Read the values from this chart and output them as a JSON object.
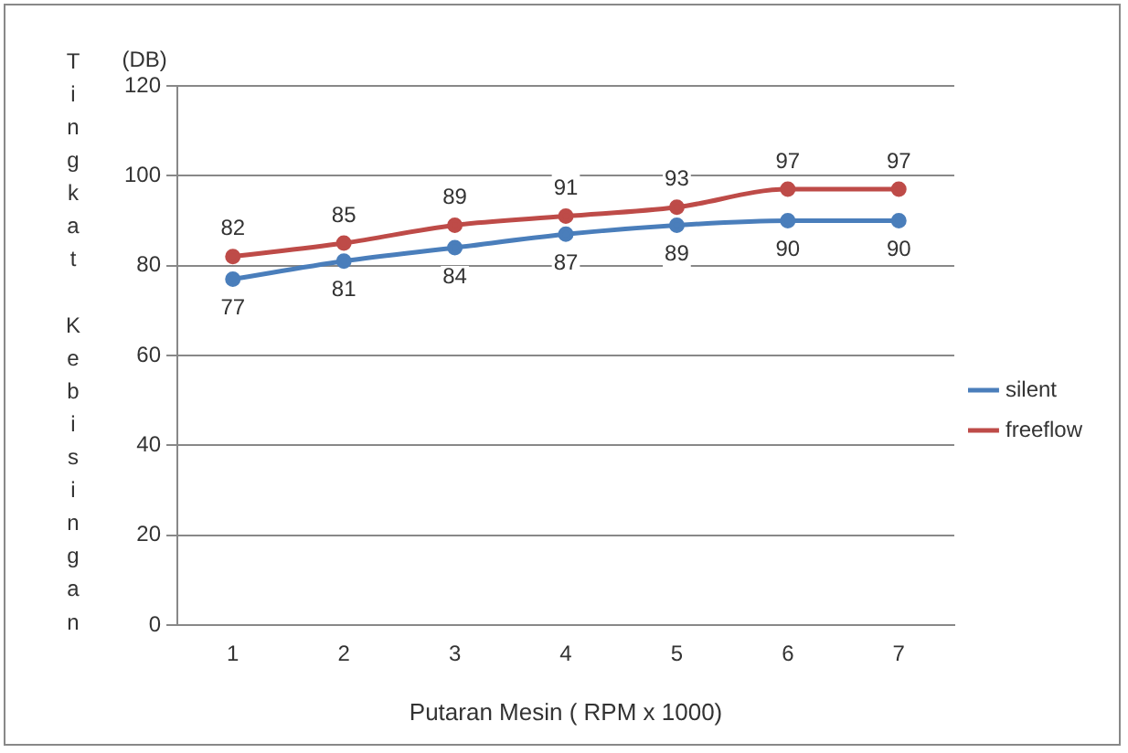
{
  "chart_data": {
    "type": "line",
    "xlabel": "Putaran Mesin ( RPM x 1000)",
    "ylabel": "Tingkat Kebisingan",
    "annotations": [
      "(DB)"
    ],
    "categories": [
      "1",
      "2",
      "3",
      "4",
      "5",
      "6",
      "7"
    ],
    "series": [
      {
        "name": "silent",
        "color": "#4a7ebb",
        "values": [
          77,
          81,
          84,
          87,
          89,
          90,
          90
        ]
      },
      {
        "name": "freeflow",
        "color": "#be4b48",
        "values": [
          82,
          85,
          89,
          91,
          93,
          97,
          97
        ]
      }
    ],
    "ylim": [
      0,
      120
    ],
    "yticks": [
      0,
      20,
      40,
      60,
      80,
      100,
      120
    ],
    "grid": "y",
    "legend": "right",
    "marker": "circle",
    "line_style": "solid",
    "data_labels": true
  }
}
